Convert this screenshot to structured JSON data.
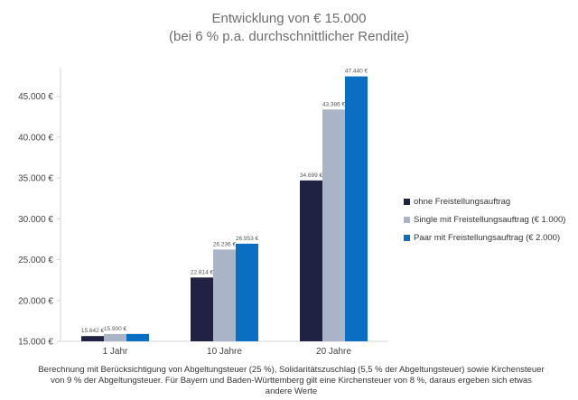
{
  "chart_data": {
    "type": "bar",
    "title": "Entwicklung von € 15.000",
    "subtitle": "(bei 6 % p.a. durchschnittlicher Rendite)",
    "categories": [
      "1 Jahr",
      "10 Jahre",
      "20 Jahre"
    ],
    "series": [
      {
        "name": "ohne Freistellungsauftrag",
        "color": "#1f2240",
        "values": [
          15642,
          22814,
          34699
        ],
        "labels": [
          "15.642 €",
          "22.814 €",
          "34.699 €"
        ]
      },
      {
        "name": "Single mit Freistellungsauftrag (€ 1.000)",
        "color": "#a9b5c7",
        "values": [
          15900,
          26236,
          43386
        ],
        "labels": [
          "15.900 €",
          "26.236 €",
          "43.386 €"
        ]
      },
      {
        "name": "Paar mit Freistellungsauftrag (€ 2.000)",
        "color": "#0a6fc2",
        "values": [
          15900,
          26953,
          47440
        ],
        "labels": [
          "",
          "26.953 €",
          "47.440 €"
        ]
      }
    ],
    "yticks": [
      15000,
      20000,
      25000,
      30000,
      35000,
      40000,
      45000
    ],
    "ytick_labels": [
      "15.000 €",
      "20.000 €",
      "25.000 €",
      "30.000 €",
      "35.000 €",
      "40.000 €",
      "45.000 €"
    ],
    "ylim": [
      15000,
      48500
    ],
    "legend_position": "right",
    "grid": false
  },
  "footnote": "Berechnung mit Berücksichtigung von Abgeltungsteuer (25 %), Solidaritätszuschlag (5,5 % der Abgeltungsteuer) sowie Kirchensteuer von 9 % der Abgeltungsteuer. Für Bayern und Baden-Württemberg gilt eine Kirchensteuer von 8 %, daraus ergeben sich etwas andere Werte"
}
